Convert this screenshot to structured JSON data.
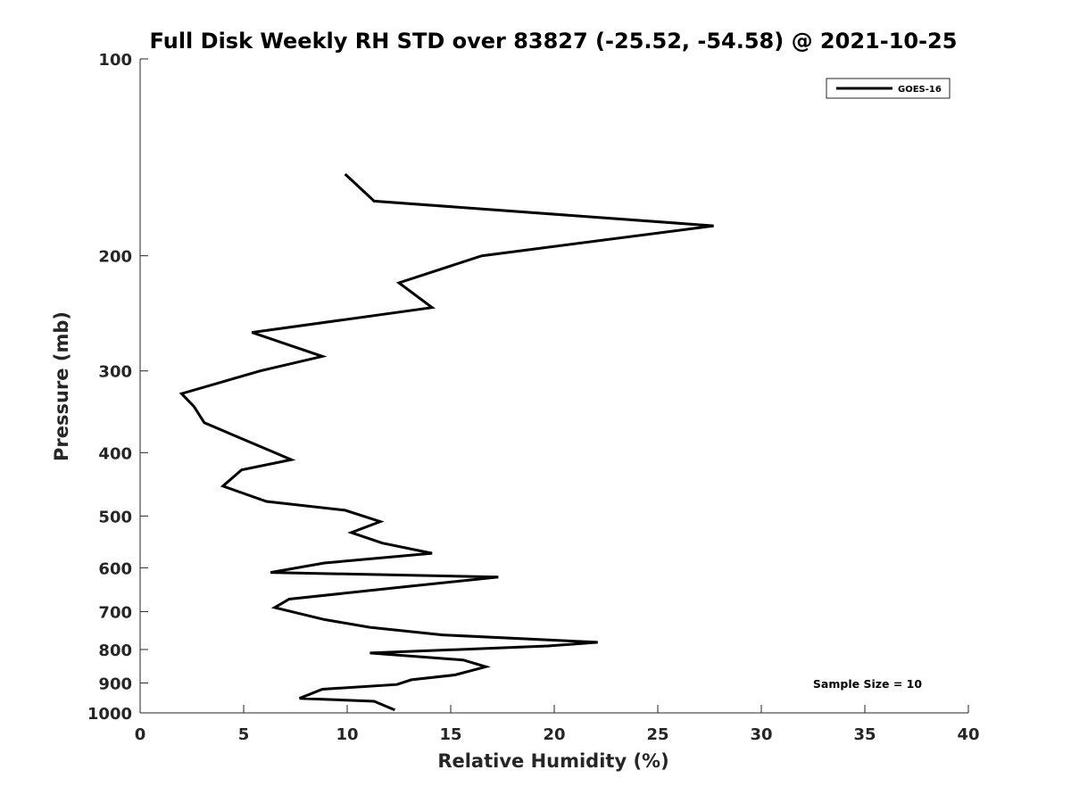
{
  "chart_data": {
    "type": "line",
    "title": "Full Disk Weekly RH STD over 83827 (-25.52, -54.58) @ 2021-10-25",
    "xlabel": "Relative Humidity (%)",
    "ylabel": "Pressure (mb)",
    "xlim": [
      0,
      40
    ],
    "ylim": [
      100,
      1000
    ],
    "y_scale": "log",
    "y_reversed": true,
    "x_ticks": [
      0,
      5,
      10,
      15,
      20,
      25,
      30,
      35,
      40
    ],
    "x_tick_labels": [
      "0",
      "5",
      "10",
      "15",
      "20",
      "25",
      "30",
      "35",
      "40"
    ],
    "y_ticks": [
      100,
      200,
      300,
      400,
      500,
      600,
      700,
      800,
      900,
      1000
    ],
    "y_tick_labels": [
      "100",
      "200",
      "300",
      "400",
      "500",
      "600",
      "700",
      "800",
      "900",
      "1000"
    ],
    "grid": false,
    "legend_position": "top-right",
    "series": [
      {
        "name": "GOES-16",
        "color": "#000000",
        "x": [
          9.9,
          11.3,
          27.7,
          16.5,
          12.5,
          14.1,
          5.4,
          8.8,
          5.8,
          2.0,
          2.6,
          3.1,
          7.3,
          4.9,
          4.0,
          6.1,
          9.9,
          11.6,
          10.2,
          11.7,
          14.1,
          8.9,
          6.3,
          17.3,
          13.1,
          7.2,
          6.5,
          8.9,
          11.1,
          14.6,
          22.1,
          19.7,
          11.1,
          15.6,
          16.7,
          15.2,
          13.1,
          12.4,
          8.8,
          7.7,
          11.3,
          12.3
        ],
        "y": [
          150,
          165,
          180,
          200,
          220,
          240,
          262,
          285,
          300,
          325,
          340,
          360,
          410,
          425,
          450,
          475,
          490,
          510,
          530,
          550,
          570,
          590,
          610,
          620,
          640,
          670,
          690,
          720,
          740,
          760,
          780,
          790,
          810,
          830,
          850,
          875,
          890,
          905,
          920,
          950,
          960,
          990
        ]
      }
    ],
    "annotations": [
      {
        "text": "Sample Size = 10"
      }
    ]
  }
}
